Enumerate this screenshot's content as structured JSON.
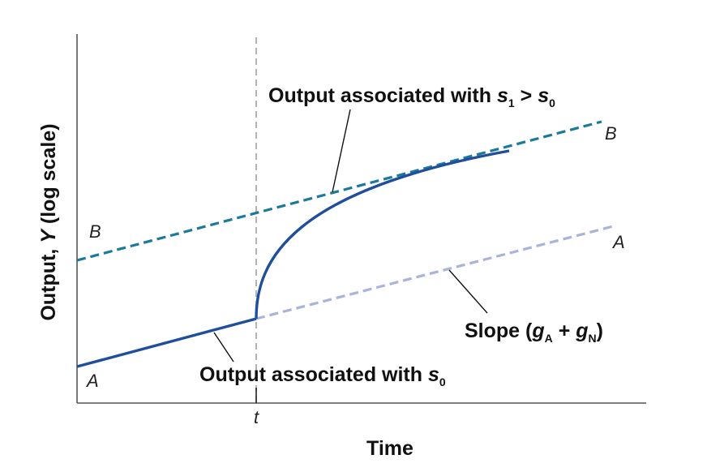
{
  "axes": {
    "y_label_prefix": "Output, ",
    "y_label_var": "Y",
    "y_label_suffix": " (log scale)",
    "x_label": "Time",
    "t_tick": "t"
  },
  "lines": {
    "A_left": "A",
    "A_right": "A",
    "B_left": "B",
    "B_right": "B"
  },
  "annotations": {
    "s1_text": "Output associated with ",
    "s1_var": "s",
    "s1_sub": "1",
    "s1_gt": " > ",
    "s0_var_top": "s",
    "s0_sub_top": "0",
    "s0_text": "Output associated with ",
    "s0_var": "s",
    "s0_sub": "0",
    "slope_text": "Slope (",
    "slope_gA": "g",
    "slope_gA_sub": "A",
    "slope_plus": " + ",
    "slope_gN": "g",
    "slope_gN_sub": "N",
    "slope_close": ")"
  },
  "colors": {
    "actual_path": "#1f4e9c",
    "path_B": "#1b7a9c",
    "path_A_extension": "#a9b4d8",
    "axis": "#555555",
    "vertical_guide": "#9a9a9a"
  }
}
